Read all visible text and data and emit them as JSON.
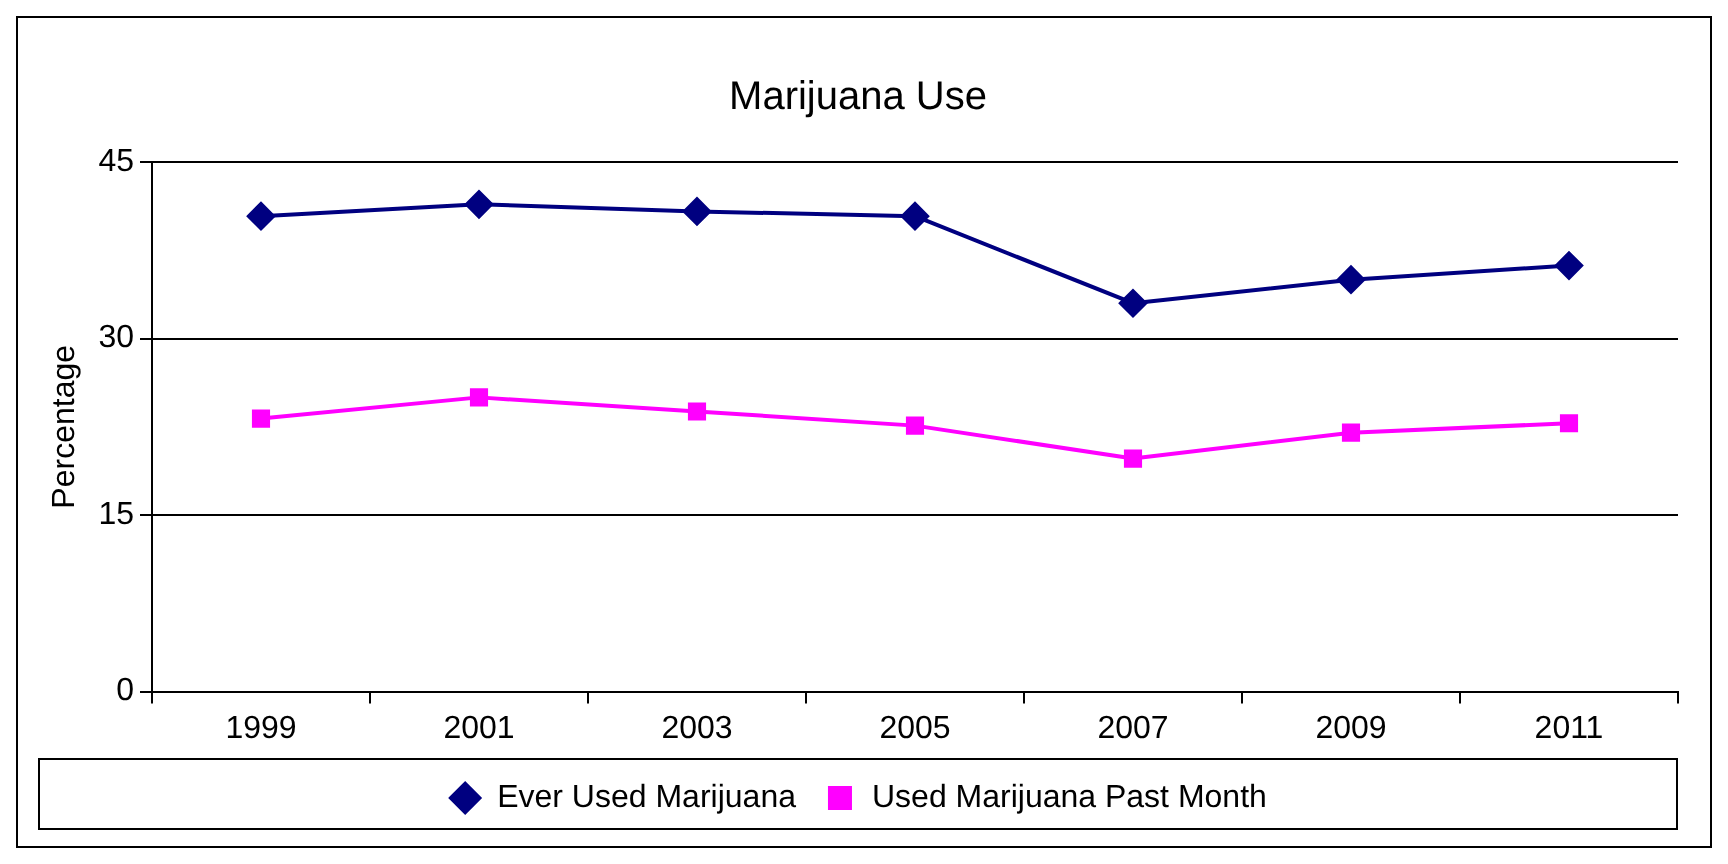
{
  "chart_data": {
    "type": "line",
    "title": "Marijuana Use",
    "ylabel": "Percentage",
    "categories": [
      "1999",
      "2001",
      "2003",
      "2005",
      "2007",
      "2009",
      "2011"
    ],
    "series": [
      {
        "name": "Ever Used Marijuana",
        "color": "#000080",
        "marker": "diamond",
        "values": [
          40.4,
          41.4,
          40.8,
          40.4,
          33.0,
          35.0,
          36.2
        ]
      },
      {
        "name": "Used Marijuana Past Month",
        "color": "#ff00ff",
        "marker": "square",
        "values": [
          23.2,
          25.0,
          23.8,
          22.6,
          19.8,
          22.0,
          22.8
        ]
      }
    ],
    "ylim": [
      0,
      45
    ],
    "yticks": [
      0,
      15,
      30,
      45
    ],
    "grid": "y",
    "legend": "bottom",
    "line_style": "solid"
  }
}
